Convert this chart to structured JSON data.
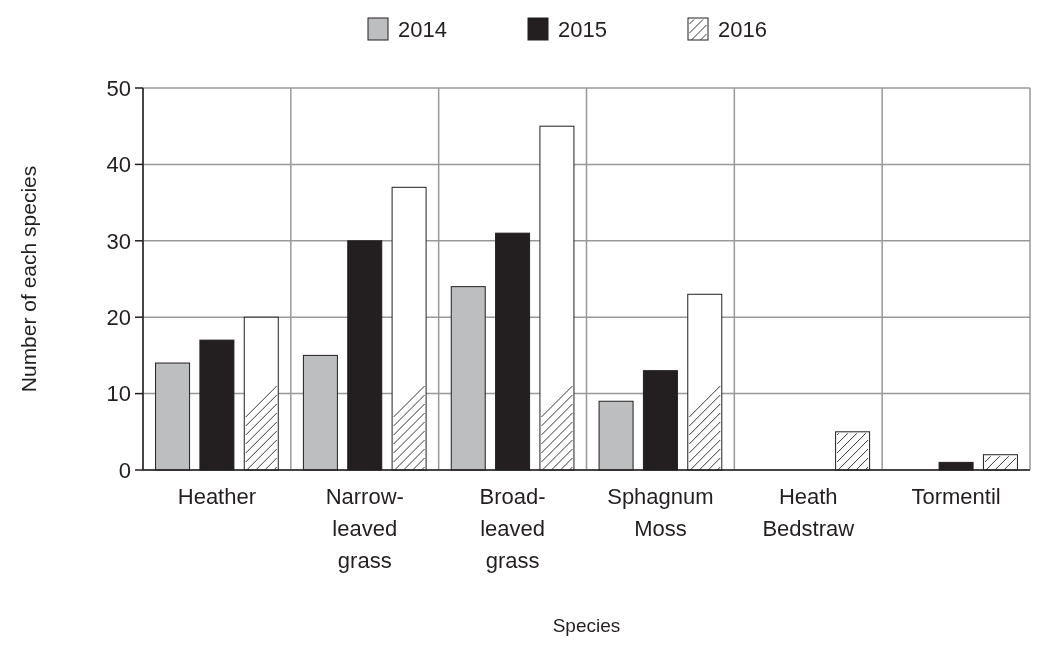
{
  "chart_data": {
    "type": "bar",
    "xlabel": "Species",
    "ylabel": "Number of each species",
    "categories": [
      "Heather",
      "Narrow-\nleaved\ngrass",
      "Broad-\nleaved\ngrass",
      "Sphagnum\nMoss",
      "Heath\nBedstraw",
      "Tormentil"
    ],
    "series": [
      {
        "name": "2014",
        "color": "#bcbec0",
        "values": [
          14,
          15,
          24,
          9,
          0,
          0
        ]
      },
      {
        "name": "2015",
        "color": "#231f20",
        "values": [
          17,
          30,
          31,
          13,
          0,
          1
        ]
      },
      {
        "name": "2016",
        "color": "#ffffff",
        "values": [
          20,
          37,
          45,
          23,
          5,
          2
        ]
      }
    ],
    "ylim": [
      0,
      50
    ],
    "yticks": [
      0,
      10,
      20,
      30,
      40,
      50
    ],
    "grid": true,
    "legend": "top"
  }
}
